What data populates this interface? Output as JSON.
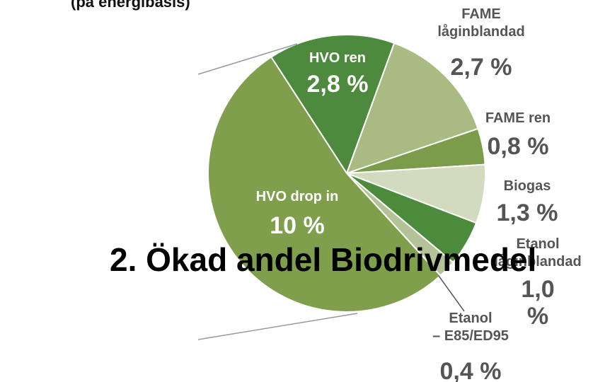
{
  "chart_data": {
    "type": "pie",
    "subtitle": "(på energibasis)",
    "annotation": "2. Ökad andel Biodrivmedel",
    "categories": [
      "HVO ren",
      "FAME\nlåginblandad",
      "FAME ren",
      "Biogas",
      "Etanol\nlåginblandad",
      "Etanol\n– E85/ED95",
      "HVO drop in"
    ],
    "values": [
      2.8,
      2.7,
      0.8,
      1.3,
      1.0,
      0.4,
      10
    ],
    "value_labels": [
      "2,8 %",
      "2,7 %",
      "0,8 %",
      "1,3 %",
      "1,0 %",
      "0,4 %",
      "10 %"
    ],
    "colors": [
      "#4e8a3d",
      "#a9bb83",
      "#7a9c4b",
      "#d2dbbf",
      "#4b8b3b",
      "#b4c397",
      "#7f9f4d"
    ]
  }
}
